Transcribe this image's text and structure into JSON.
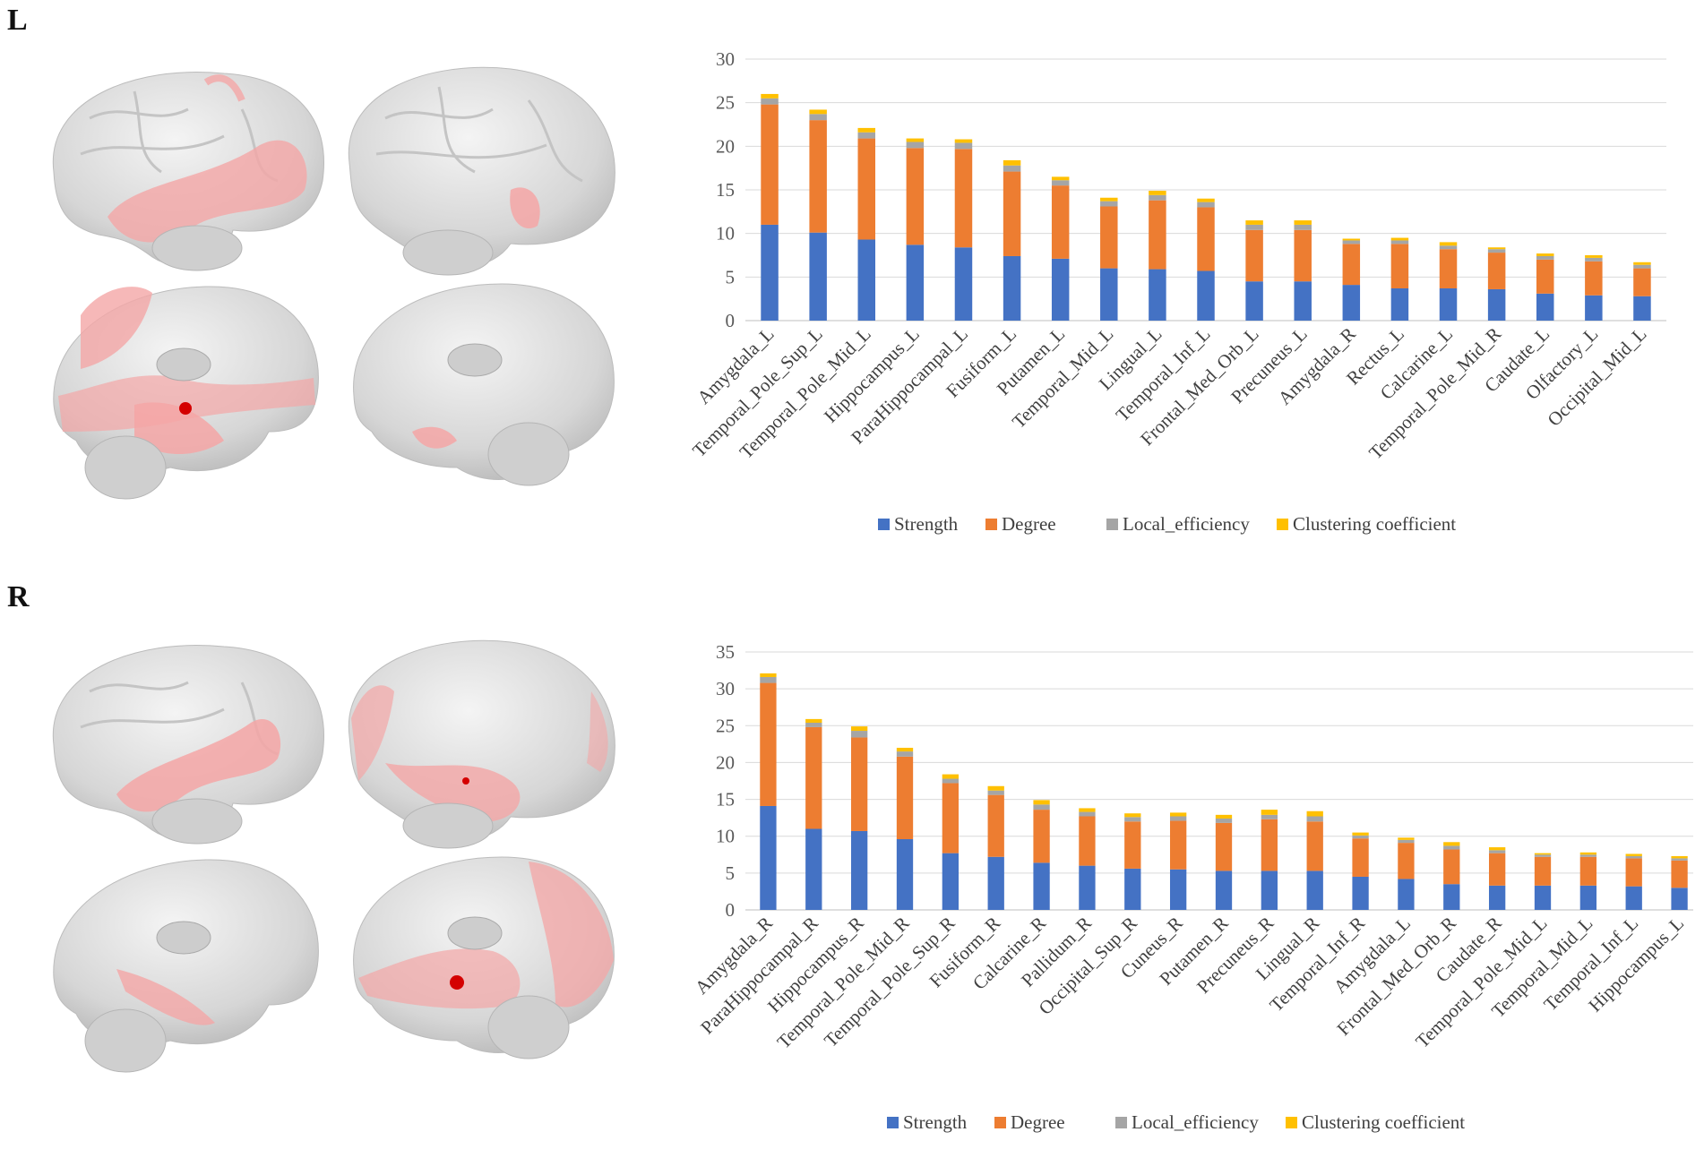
{
  "figure": {
    "panels": [
      "L",
      "R"
    ]
  },
  "colors": {
    "strength": "#4472C4",
    "degree": "#ED7D31",
    "local_efficiency": "#A5A5A5",
    "clustering": "#FFC000",
    "brain": "#d9d9d9",
    "highlight": "#f4a6a6",
    "node": "#d40000"
  },
  "chart_data": [
    {
      "panel": "L",
      "type": "bar",
      "stacked": true,
      "ylim": [
        0,
        30
      ],
      "yticks": [
        0,
        5,
        10,
        15,
        20,
        25,
        30
      ],
      "grid": true,
      "legend_position": "bottom",
      "categories": [
        "Amygdala_L",
        "Temporal_Pole_Sup_L",
        "Temporal_Pole_Mid_L",
        "Hippocampus_L",
        "ParaHippocampal_L",
        "Fusiform_L",
        "Putamen_L",
        "Temporal_Mid_L",
        "Lingual_L",
        "Temporal_Inf_L",
        "Frontal_Med_Orb_L",
        "Precuneus_L",
        "Amygdala_R",
        "Rectus_L",
        "Calcarine_L",
        "Temporal_Pole_Mid_R",
        "Caudate_L",
        "Olfactory_L",
        "Occipital_Mid_L"
      ],
      "series": [
        {
          "name": "Strength",
          "key": "strength",
          "values": [
            11.0,
            10.1,
            9.3,
            8.7,
            8.4,
            7.4,
            7.1,
            6.0,
            5.9,
            5.7,
            4.5,
            4.5,
            4.1,
            3.7,
            3.7,
            3.6,
            3.1,
            2.9,
            2.8
          ]
        },
        {
          "name": "Degree",
          "key": "degree",
          "values": [
            13.8,
            12.9,
            11.6,
            11.1,
            11.3,
            9.7,
            8.4,
            7.1,
            7.9,
            7.3,
            5.9,
            5.9,
            4.7,
            5.1,
            4.5,
            4.2,
            3.9,
            3.9,
            3.2
          ]
        },
        {
          "name": "Local_efficiency",
          "key": "local_efficiency",
          "values": [
            0.7,
            0.7,
            0.7,
            0.7,
            0.7,
            0.7,
            0.6,
            0.6,
            0.6,
            0.6,
            0.6,
            0.6,
            0.4,
            0.4,
            0.4,
            0.4,
            0.4,
            0.4,
            0.4
          ]
        },
        {
          "name": "Clustering coefficient",
          "key": "clustering",
          "values": [
            0.5,
            0.5,
            0.5,
            0.4,
            0.4,
            0.6,
            0.4,
            0.4,
            0.5,
            0.4,
            0.5,
            0.5,
            0.2,
            0.3,
            0.4,
            0.2,
            0.3,
            0.3,
            0.3
          ]
        }
      ]
    },
    {
      "panel": "R",
      "type": "bar",
      "stacked": true,
      "ylim": [
        0,
        35
      ],
      "yticks": [
        0,
        5,
        10,
        15,
        20,
        25,
        30,
        35
      ],
      "grid": true,
      "legend_position": "bottom",
      "categories": [
        "Amygdala_R",
        "ParaHippocampal_R",
        "Hippocampus_R",
        "Temporal_Pole_Mid_R",
        "Temporal_Pole_Sup_R",
        "Fusiform_R",
        "Calcarine_R",
        "Pallidum_R",
        "Occipital_Sup_R",
        "Cuneus_R",
        "Putamen_R",
        "Precuneus_R",
        "Lingual_R",
        "Temporal_Inf_R",
        "Amygdala_L",
        "Frontal_Med_Orb_R",
        "Caudate_R",
        "Temporal_Pole_Mid_L",
        "Temporal_Mid_L",
        "Temporal_Inf_L",
        "Hippocampus_L"
      ],
      "series": [
        {
          "name": "Strength",
          "key": "strength",
          "values": [
            14.1,
            11.0,
            10.7,
            9.6,
            7.7,
            7.2,
            6.4,
            6.0,
            5.6,
            5.5,
            5.3,
            5.3,
            5.3,
            4.5,
            4.2,
            3.5,
            3.3,
            3.3,
            3.3,
            3.2,
            3.0
          ]
        },
        {
          "name": "Degree",
          "key": "degree",
          "values": [
            16.7,
            13.8,
            12.7,
            11.2,
            9.5,
            8.4,
            7.2,
            6.7,
            6.4,
            6.6,
            6.5,
            7.0,
            6.7,
            5.2,
            4.9,
            4.7,
            4.4,
            3.9,
            3.9,
            3.8,
            3.7
          ]
        },
        {
          "name": "Local_efficiency",
          "key": "local_efficiency",
          "values": [
            0.8,
            0.6,
            0.9,
            0.7,
            0.6,
            0.6,
            0.7,
            0.6,
            0.6,
            0.6,
            0.6,
            0.6,
            0.7,
            0.4,
            0.4,
            0.5,
            0.4,
            0.3,
            0.3,
            0.3,
            0.3
          ]
        },
        {
          "name": "Clustering coefficient",
          "key": "clustering",
          "values": [
            0.5,
            0.5,
            0.6,
            0.5,
            0.6,
            0.6,
            0.6,
            0.5,
            0.5,
            0.5,
            0.5,
            0.7,
            0.7,
            0.4,
            0.3,
            0.5,
            0.4,
            0.2,
            0.3,
            0.3,
            0.3
          ]
        }
      ]
    }
  ]
}
